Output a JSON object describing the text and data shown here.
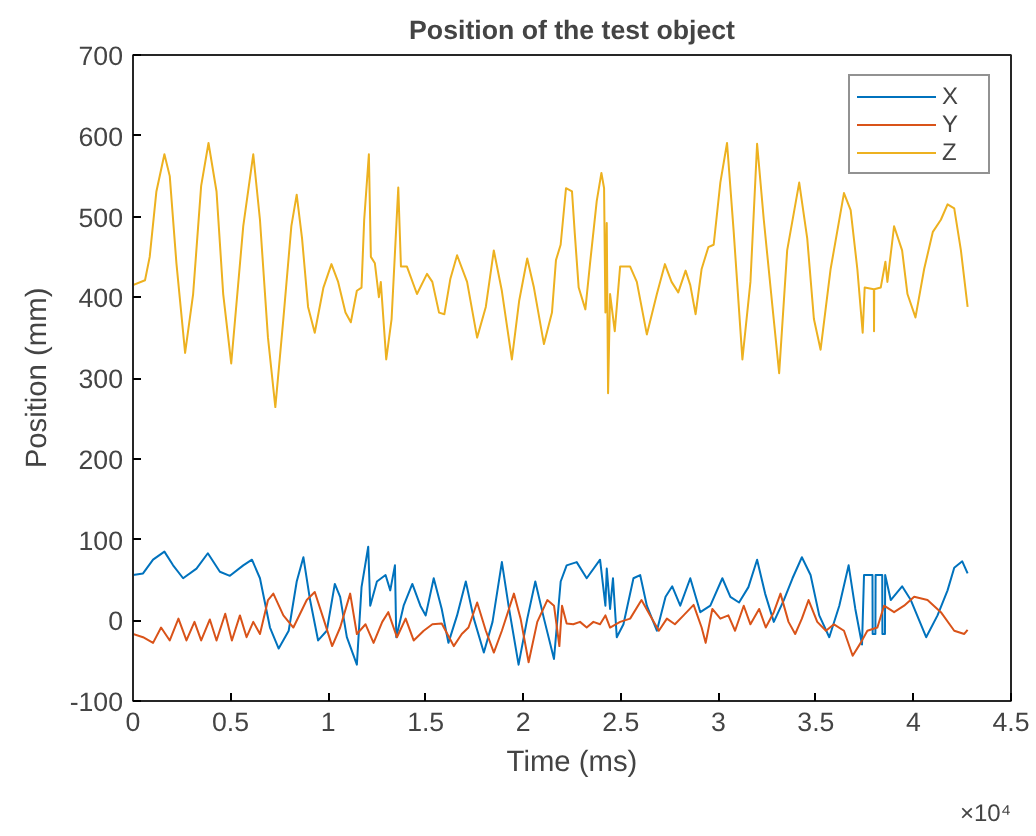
{
  "chart_data": {
    "type": "line",
    "title": "Position of the test object",
    "xlabel": "Time (ms)",
    "ylabel": "Position (mm)",
    "annotations": [
      "×10⁴"
    ],
    "xlim": [
      0,
      4.5
    ],
    "ylim": [
      -100,
      700
    ],
    "xticks": [
      0,
      0.5,
      1,
      1.5,
      2,
      2.5,
      3,
      3.5,
      4,
      4.5
    ],
    "yticks": [
      -100,
      0,
      100,
      200,
      300,
      400,
      500,
      600,
      700
    ],
    "grid": false,
    "legend": "top right",
    "line_style": "solid",
    "marker": "none",
    "series": [
      {
        "name": "X",
        "color": "#0072bd",
        "x": [
          0,
          0.0514,
          0.1028,
          0.161,
          0.2055,
          0.2569,
          0.3254,
          0.3836,
          0.4453,
          0.4966,
          0.5651,
          0.6097,
          0.6507,
          0.7021,
          0.7467,
          0.798,
          0.8391,
          0.8733,
          0.9076,
          0.9487,
          0.9932,
          1.0344,
          1.0617,
          1.096,
          1.1474,
          1.1713,
          1.2056,
          1.2159,
          1.2502,
          1.2945,
          1.3185,
          1.3425,
          1.3494,
          1.3871,
          1.4316,
          1.4727,
          1.5002,
          1.5413,
          1.5823,
          1.6166,
          1.661,
          1.7057,
          1.7468,
          1.7981,
          1.8427,
          1.8906,
          1.9248,
          1.9762,
          2.0208,
          2.0619,
          2.1063,
          2.1577,
          2.192,
          2.2226,
          2.274,
          2.3253,
          2.3938,
          2.4212,
          2.4281,
          2.4452,
          2.46,
          2.4795,
          2.5137,
          2.565,
          2.5993,
          2.6336,
          2.685,
          2.7295,
          2.7637,
          2.8048,
          2.8562,
          2.9076,
          2.959,
          3.0206,
          3.0617,
          3.1062,
          3.1542,
          3.1987,
          3.2398,
          3.2843,
          3.3357,
          3.3802,
          3.4282,
          3.4727,
          3.5172,
          3.5686,
          3.62,
          3.6679,
          3.7021,
          3.7364,
          3.7467,
          3.79,
          3.791,
          3.805,
          3.806,
          3.84,
          3.841,
          3.854,
          3.855,
          3.8837,
          3.9419,
          3.9865,
          4.0652,
          4.1234,
          4.1748,
          4.2091,
          4.2502,
          4.2776
        ],
        "values": [
          56,
          58,
          75,
          85,
          68,
          52,
          64,
          83,
          60,
          55,
          68,
          75,
          52,
          -9,
          -35,
          -13,
          48,
          78,
          25,
          -25,
          -13,
          45,
          29,
          -21,
          -55,
          41,
          91,
          18,
          48,
          56,
          37,
          68,
          -21,
          18,
          45,
          18,
          6,
          52,
          14,
          -28,
          6,
          48,
          2,
          -40,
          -2,
          72,
          18,
          -55,
          2,
          48,
          2,
          -48,
          48,
          68,
          72,
          52,
          75,
          18,
          64,
          14,
          52,
          -21,
          -5,
          52,
          56,
          18,
          -13,
          29,
          42,
          18,
          52,
          10,
          18,
          52,
          29,
          22,
          41,
          75,
          33,
          -2,
          25,
          52,
          78,
          56,
          6,
          -21,
          18,
          68,
          14,
          -30,
          56,
          56,
          -17,
          -17,
          56,
          56,
          -17,
          -17,
          56,
          25,
          42,
          25,
          -21,
          6,
          37,
          65,
          73,
          58
        ]
      },
      {
        "name": "Y",
        "color": "#d95319",
        "x": [
          0,
          0.0514,
          0.1028,
          0.1439,
          0.1884,
          0.2329,
          0.274,
          0.3151,
          0.3494,
          0.3939,
          0.4281,
          0.4727,
          0.5069,
          0.548,
          0.5822,
          0.6165,
          0.6508,
          0.6919,
          0.7193,
          0.7707,
          0.822,
          0.8905,
          0.9316,
          0.9761,
          1.0207,
          1.0618,
          1.1131,
          1.1474,
          1.1919,
          1.233,
          1.2775,
          1.3083,
          1.3528,
          1.3974,
          1.4385,
          1.4899,
          1.5344,
          1.5823,
          1.644,
          1.6851,
          1.7194,
          1.7639,
          1.8084,
          1.8495,
          1.8906,
          1.9523,
          1.9865,
          2.0276,
          2.0721,
          2.1235,
          2.1578,
          2.1852,
          2.1989,
          2.2226,
          2.2568,
          2.2911,
          2.3253,
          2.3596,
          2.3938,
          2.4212,
          2.4452,
          2.4966,
          2.548,
          2.6062,
          2.6507,
          2.6952,
          2.7363,
          2.7774,
          2.8219,
          2.8733,
          2.9144,
          2.935,
          2.9692,
          3.0103,
          3.0514,
          3.0857,
          3.1302,
          3.1645,
          3.209,
          3.2432,
          3.2843,
          3.3186,
          3.3597,
          3.3939,
          3.4282,
          3.4625,
          3.507,
          3.5515,
          3.5926,
          3.644,
          3.6885,
          3.7296,
          3.7638,
          3.8152,
          3.8494,
          3.9008,
          3.9522,
          4.0036,
          4.0721,
          4.1406,
          4.2091,
          4.2605,
          4.2776
        ],
        "values": [
          -17,
          -21,
          -28,
          -9,
          -25,
          2,
          -25,
          -2,
          -25,
          1,
          -25,
          8,
          -25,
          6,
          -21,
          -2,
          -17,
          25,
          33,
          6,
          -9,
          25,
          35,
          2,
          -32,
          -9,
          33,
          -17,
          -5,
          -28,
          -2,
          10,
          -21,
          2,
          -25,
          -13,
          -5,
          -4,
          -32,
          -17,
          -9,
          22,
          -13,
          -40,
          -13,
          33,
          2,
          -52,
          -2,
          25,
          18,
          -32,
          18,
          -4,
          -5,
          -2,
          -9,
          -2,
          -5,
          6,
          -9,
          -2,
          2,
          25,
          6,
          -13,
          2,
          -5,
          6,
          19,
          -9,
          -28,
          14,
          2,
          6,
          -13,
          18,
          -5,
          14,
          -9,
          10,
          33,
          -2,
          -17,
          2,
          25,
          -2,
          -13,
          -5,
          -13,
          -44,
          -28,
          -13,
          -9,
          18,
          10,
          18,
          29,
          25,
          10,
          -13,
          -17,
          -12
        ]
      },
      {
        "name": "Z",
        "color": "#edb120",
        "x": [
          0,
          0.0616,
          0.0856,
          0.1199,
          0.161,
          0.1884,
          0.2226,
          0.2671,
          0.3082,
          0.3493,
          0.387,
          0.4281,
          0.4623,
          0.5034,
          0.5651,
          0.6164,
          0.6507,
          0.6918,
          0.7295,
          0.7705,
          0.8116,
          0.839,
          0.8664,
          0.8973,
          0.9315,
          0.976,
          1.0171,
          1.0514,
          1.089,
          1.1164,
          1.1473,
          1.1712,
          1.1849,
          1.2089,
          1.2192,
          1.2397,
          1.2603,
          1.27,
          1.2979,
          1.3253,
          1.3596,
          1.3733,
          1.4041,
          1.4555,
          1.5068,
          1.5342,
          1.5685,
          1.5959,
          1.6267,
          1.661,
          1.7123,
          1.7637,
          1.8082,
          1.8493,
          1.8904,
          1.9418,
          1.9795,
          2.0205,
          2.0548,
          2.1062,
          2.1473,
          2.1678,
          2.1918,
          2.2192,
          2.25,
          2.2637,
          2.2842,
          2.3185,
          2.3425,
          2.3767,
          2.4007,
          2.4144,
          2.4212,
          2.4281,
          2.4349,
          2.4452,
          2.4692,
          2.4966,
          2.548,
          2.5822,
          2.6336,
          2.685,
          2.7261,
          2.7603,
          2.7946,
          2.8322,
          2.8562,
          2.8836,
          2.9144,
          2.9487,
          2.9761,
          3.0103,
          3.0446,
          3.0788,
          3.1234,
          3.1645,
          3.1987,
          3.233,
          3.2775,
          3.3117,
          3.3528,
          3.4145,
          3.4556,
          3.4899,
          3.5241,
          3.5755,
          3.6439,
          3.6782,
          3.7124,
          3.7398,
          3.7501,
          3.797,
          3.798,
          3.799,
          3.8323,
          3.8563,
          3.8665,
          3.9008,
          3.9419,
          3.9693,
          4.0104,
          4.0549,
          4.0995,
          4.1406,
          4.1748,
          4.2091,
          4.2433,
          4.2776
        ],
        "values": [
          415,
          421,
          450,
          531,
          577,
          550,
          442,
          331,
          404,
          538,
          591,
          531,
          404,
          318,
          488,
          577,
          496,
          350,
          264,
          373,
          488,
          527,
          473,
          388,
          356,
          412,
          441,
          419,
          381,
          369,
          408,
          412,
          496,
          577,
          450,
          442,
          400,
          419,
          323,
          373,
          536,
          438,
          438,
          404,
          429,
          419,
          381,
          379,
          423,
          452,
          419,
          350,
          388,
          458,
          408,
          323,
          396,
          448,
          412,
          342,
          381,
          446,
          465,
          535,
          531,
          481,
          412,
          385,
          442,
          519,
          554,
          535,
          381,
          492,
          281,
          404,
          358,
          438,
          438,
          419,
          354,
          404,
          441,
          419,
          406,
          433,
          415,
          379,
          435,
          462,
          465,
          542,
          591,
          481,
          323,
          419,
          590,
          496,
          388,
          306,
          458,
          542,
          473,
          373,
          335,
          435,
          529,
          508,
          435,
          356,
          412,
          410,
          358,
          410,
          412,
          444,
          419,
          488,
          458,
          404,
          375,
          435,
          481,
          496,
          515,
          510,
          458,
          388
        ]
      }
    ]
  }
}
